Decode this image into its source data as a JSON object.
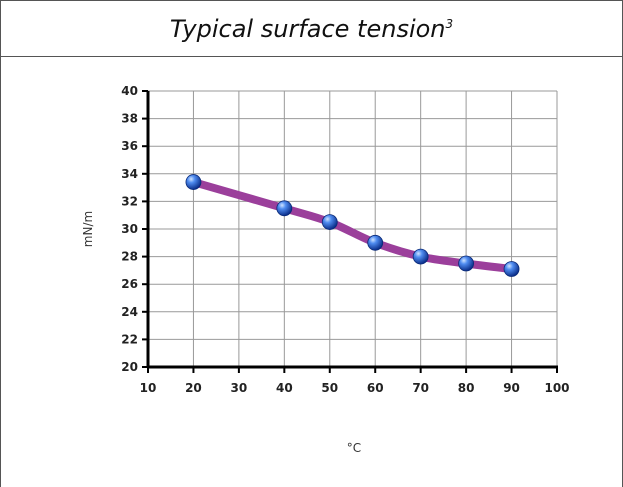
{
  "header": {
    "title": "Typical surface tension",
    "superscript": "3"
  },
  "chart_data": {
    "type": "line",
    "title": "Typical surface tension",
    "xlabel": "°C",
    "ylabel": "mN/m",
    "xlim": [
      10,
      100
    ],
    "ylim": [
      20,
      40
    ],
    "xticks": [
      10,
      20,
      30,
      40,
      50,
      60,
      70,
      80,
      90,
      100
    ],
    "yticks": [
      20,
      22,
      24,
      26,
      28,
      30,
      32,
      34,
      36,
      38,
      40
    ],
    "grid": true,
    "series": [
      {
        "x": [
          20,
          40,
          50,
          60,
          70,
          80,
          90
        ],
        "y": [
          33.4,
          31.5,
          30.5,
          29.0,
          28.0,
          27.5,
          27.1
        ],
        "line_color": "#9b3f9b",
        "marker_color": "#1f5fd6"
      }
    ]
  }
}
